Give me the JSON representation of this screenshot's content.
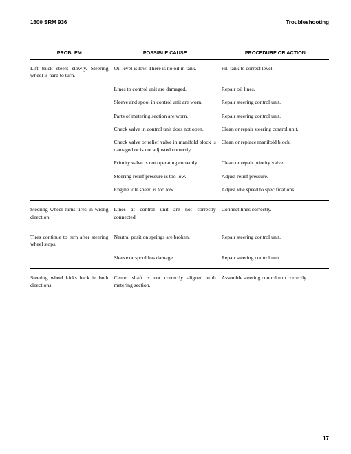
{
  "header": {
    "left": "1600 SRM 936",
    "right": "Troubleshooting"
  },
  "columns": {
    "problem": "PROBLEM",
    "cause": "POSSIBLE CAUSE",
    "action": "PROCEDURE OR ACTION"
  },
  "sections": [
    {
      "problem": "Lift truck steers slowly. Steering wheel is hard to turn.",
      "rows": [
        {
          "cause": "Oil level is low.  There is no oil in tank.",
          "action": "Fill tank to correct level."
        },
        {
          "cause": "Lines to control unit are damaged.",
          "action": "Repair oil lines."
        },
        {
          "cause": "Sleeve and spool in control unit are worn.",
          "action": "Repair steering control unit."
        },
        {
          "cause": "Parts of metering section are worn.",
          "action": "Repair steering control unit."
        },
        {
          "cause": "Check valve in control unit does not open.",
          "action": "Clean or repair steering control unit."
        },
        {
          "cause": "Check valve or relief valve in manifold block is damaged or is not adjusted correctly.",
          "action": "Clean or replace manifold block."
        },
        {
          "cause": "Priority valve is not operating correctly.",
          "action": "Clean or repair priority valve."
        },
        {
          "cause": "Steering relief pressure is too low.",
          "action": "Adjust relief pressure."
        },
        {
          "cause": "Engine idle speed is too low.",
          "action": "Adjust idle speed to specifications."
        }
      ]
    },
    {
      "problem": "Steering wheel turns tires in wrong direction.",
      "rows": [
        {
          "cause": "Lines at control unit are not correctly connected.",
          "action": "Connect lines correctly."
        }
      ]
    },
    {
      "problem": "Tires continue to turn after steering wheel stops.",
      "rows": [
        {
          "cause": "Neutral position springs are broken.",
          "action": "Repair steering control unit."
        },
        {
          "cause": "Sleeve or spool has damage.",
          "action": "Repair steering control unit."
        }
      ]
    },
    {
      "problem": "Steering wheel kicks back in both directions.",
      "rows": [
        {
          "cause": "Center shaft is not correctly aligned with metering section.",
          "action": "Assemble steering control unit correctly."
        }
      ]
    }
  ],
  "page_number": "17"
}
